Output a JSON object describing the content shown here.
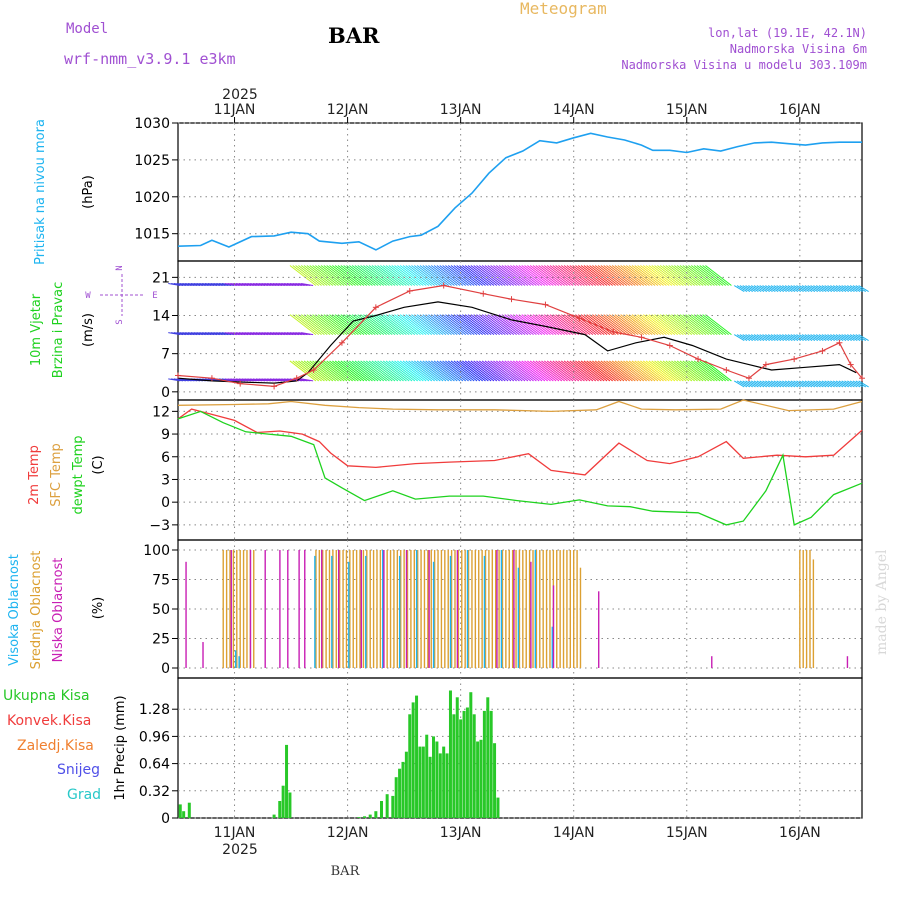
{
  "header": {
    "model_label": "Model",
    "model_name": "wrf-nmm_v3.9.1 e3km",
    "station": "BAR",
    "title": "Meteogram",
    "lonlat": "lon,lat (19.1E, 42.1N)",
    "elevation": "Nadmorska Visina 6m",
    "model_elevation": "Nadmorska Visina u modelu 303.109m",
    "footer_station": "BAR",
    "watermark": "made by Angel"
  },
  "colors": {
    "pressure": "#1ea0f0",
    "temp": "#f03c3c",
    "sfc": "#dca040",
    "dewpt": "#1ed21e",
    "high_cloud": "#1eb4f0",
    "mid_cloud": "#dca032",
    "low_cloud": "#c81eb4",
    "precip": "#28c828",
    "wind_obs": "#e04040",
    "label_purple": "#a050d2"
  },
  "time_axis": {
    "top_year": "2025",
    "bottom_year": "2025",
    "day_labels": [
      "11JAN",
      "12JAN",
      "13JAN",
      "14JAN",
      "15JAN",
      "16JAN"
    ],
    "day_positions": [
      0.5,
      1.5,
      2.5,
      3.5,
      4.5,
      5.5
    ],
    "range_days": [
      0.0,
      6.05
    ]
  },
  "panels": {
    "pressure": {
      "ylabel_name": "Pritisak na nivou mora",
      "unit": "(hPa)",
      "ticks": [
        "1015",
        "1020",
        "1025",
        "1030"
      ]
    },
    "wind": {
      "label_line1": "10m Vjetar",
      "label_line2": "Brzina i Pravac",
      "unit": "(m/s)",
      "ticks": [
        "0",
        "7",
        "14",
        "21"
      ],
      "compass": {
        "n": "N",
        "s": "S",
        "w": "W",
        "e": "E"
      }
    },
    "temperature": {
      "label_temp": "2m Temp",
      "label_sfc": "SFC Temp",
      "label_dewpt": "dewpt Temp",
      "unit": "(C)",
      "ticks": [
        "−3",
        "0",
        "3",
        "6",
        "9",
        "12"
      ]
    },
    "cloud": {
      "label_high": "Visoka Oblacnost",
      "label_mid": "Srednja Oblacnost",
      "label_low": "Niska Oblacnost",
      "unit": "(%)",
      "ticks": [
        "0",
        "25",
        "50",
        "75",
        "100"
      ]
    },
    "precip": {
      "legend_total": "Ukupna Kisa",
      "legend_conv": "Konvek.Kisa",
      "legend_frozen": "Zaledj.Kisa",
      "legend_snow": "Snijeg",
      "legend_hail": "Grad",
      "ylabel": "1hr Precip (mm)",
      "ticks": [
        "0",
        "0.32",
        "0.64",
        "0.96",
        "1.28"
      ]
    }
  },
  "chart_data": [
    {
      "type": "line",
      "title": "Pritisak na nivou mora",
      "ylabel": "(hPa)",
      "ylim": [
        1011.3,
        1030
      ],
      "x_days": [
        0.0,
        0.2,
        0.3,
        0.45,
        0.65,
        0.85,
        1.0,
        1.15,
        1.25,
        1.45,
        1.6,
        1.75,
        1.9,
        2.05,
        2.15,
        2.3,
        2.45,
        2.6,
        2.75,
        2.9,
        3.05,
        3.2,
        3.35,
        3.5,
        3.65,
        3.8,
        3.95,
        4.1,
        4.2,
        4.35,
        4.5,
        4.65,
        4.8,
        4.95,
        5.1,
        5.25,
        5.4,
        5.55,
        5.7,
        5.85,
        6.0,
        6.05
      ],
      "values": [
        1013.3,
        1013.4,
        1014.1,
        1013.2,
        1014.6,
        1014.7,
        1015.2,
        1015.0,
        1014.0,
        1013.7,
        1013.9,
        1012.8,
        1014.0,
        1014.6,
        1014.8,
        1016.0,
        1018.5,
        1020.5,
        1023.2,
        1025.3,
        1026.2,
        1027.6,
        1027.3,
        1028.0,
        1028.6,
        1028.1,
        1027.7,
        1027.0,
        1026.3,
        1026.3,
        1026.0,
        1026.5,
        1026.2,
        1026.8,
        1027.3,
        1027.4,
        1027.2,
        1027.0,
        1027.3,
        1027.4,
        1027.4,
        1027.4
      ]
    },
    {
      "type": "line",
      "title": "10m Vjetar Brzina i Pravac",
      "ylabel": "(m/s)",
      "ylim": [
        -1.5,
        24
      ],
      "series": [
        {
          "name": "10m wind speed",
          "x_days": [
            0.0,
            0.3,
            0.55,
            0.85,
            1.05,
            1.15,
            1.35,
            1.55,
            1.75,
            2.0,
            2.3,
            2.6,
            2.95,
            3.25,
            3.6,
            3.8,
            4.05,
            4.3,
            4.55,
            4.85,
            5.05,
            5.25,
            5.55,
            5.85,
            6.0
          ],
          "values": [
            2.5,
            2.0,
            1.8,
            1.6,
            2.0,
            3.5,
            8.5,
            13.0,
            14.0,
            15.5,
            16.5,
            15.5,
            13.2,
            12.0,
            10.5,
            7.5,
            9.0,
            10.0,
            8.5,
            6.0,
            5.0,
            4.0,
            4.5,
            5.0,
            3.5
          ]
        },
        {
          "name": "wind gust",
          "x_days": [
            0.0,
            0.3,
            0.55,
            0.85,
            1.05,
            1.2,
            1.45,
            1.75,
            2.05,
            2.35,
            2.7,
            2.95,
            3.25,
            3.55,
            3.85,
            4.1,
            4.35,
            4.6,
            4.85,
            5.05,
            5.2,
            5.45,
            5.7,
            5.85,
            5.95,
            6.05
          ],
          "values": [
            3.0,
            2.5,
            1.5,
            1.0,
            2.5,
            4.0,
            9.0,
            15.5,
            18.5,
            19.5,
            18.0,
            17.0,
            16.0,
            13.5,
            11.0,
            10.0,
            8.5,
            6.0,
            4.0,
            2.5,
            5.0,
            6.0,
            7.5,
            9.0,
            5.0,
            2.5
          ]
        }
      ]
    },
    {
      "type": "line",
      "title": "2m Temp / SFC Temp / dewpt Temp",
      "ylabel": "(C)",
      "ylim": [
        -5,
        13.5
      ],
      "series": [
        {
          "name": "2m Temp",
          "x_days": [
            0.0,
            0.12,
            0.3,
            0.5,
            0.7,
            0.9,
            1.1,
            1.25,
            1.35,
            1.5,
            1.75,
            2.1,
            2.4,
            2.8,
            3.1,
            3.3,
            3.6,
            3.9,
            4.15,
            4.35,
            4.6,
            4.85,
            5.0,
            5.3,
            5.55,
            5.8,
            6.05
          ],
          "values": [
            11.0,
            12.3,
            11.6,
            10.8,
            9.2,
            9.4,
            9.0,
            8.0,
            6.5,
            4.8,
            4.6,
            5.1,
            5.3,
            5.5,
            6.4,
            4.2,
            3.6,
            7.8,
            5.5,
            5.1,
            6.0,
            8.0,
            5.8,
            6.2,
            6.0,
            6.2,
            9.5
          ]
        },
        {
          "name": "SFC Temp",
          "x_days": [
            0.0,
            0.5,
            0.8,
            1.0,
            1.3,
            1.6,
            1.9,
            2.3,
            2.8,
            3.3,
            3.7,
            3.9,
            4.1,
            4.4,
            4.8,
            5.0,
            5.4,
            5.8,
            6.05
          ],
          "values": [
            12.8,
            12.9,
            13.0,
            13.3,
            12.8,
            12.5,
            12.3,
            12.2,
            12.2,
            12.0,
            12.2,
            13.3,
            12.3,
            12.2,
            12.3,
            13.5,
            12.1,
            12.3,
            13.3
          ]
        },
        {
          "name": "dewpt Temp",
          "x_days": [
            0.0,
            0.2,
            0.4,
            0.6,
            0.8,
            1.0,
            1.2,
            1.3,
            1.45,
            1.65,
            1.9,
            2.1,
            2.4,
            2.7,
            3.0,
            3.3,
            3.55,
            3.8,
            4.0,
            4.2,
            4.6,
            4.85,
            5.0,
            5.2,
            5.35,
            5.45,
            5.6,
            5.8,
            6.05
          ],
          "values": [
            11.0,
            12.0,
            10.5,
            9.3,
            9.0,
            8.7,
            7.6,
            3.2,
            1.9,
            0.2,
            1.5,
            0.4,
            0.8,
            0.8,
            0.2,
            -0.3,
            0.3,
            -0.5,
            -0.6,
            -1.2,
            -1.4,
            -3.0,
            -2.5,
            1.5,
            6.2,
            -3.0,
            -2.0,
            1.0,
            2.5
          ]
        }
      ]
    },
    {
      "type": "bar",
      "title": "Visoka / Srednja / Niska Oblacnost",
      "ylabel": "(%)",
      "ylim": [
        0,
        100
      ],
      "series": [
        {
          "name": "Srednja Oblacnost",
          "x_days": [
            0.4,
            0.43,
            0.46,
            0.49,
            0.52,
            0.55,
            0.58,
            0.61,
            0.64,
            0.67,
            1.22,
            1.25,
            1.28,
            1.31,
            1.34,
            1.37,
            1.4,
            1.43,
            1.46,
            1.49,
            1.52,
            1.55,
            1.58,
            1.61,
            1.64,
            1.67,
            1.7,
            1.73,
            1.76,
            1.79,
            1.82,
            1.85,
            1.88,
            1.91,
            1.94,
            1.97,
            2.0,
            2.03,
            2.06,
            2.09,
            2.12,
            2.15,
            2.18,
            2.21,
            2.24,
            2.27,
            2.3,
            2.33,
            2.36,
            2.39,
            2.42,
            2.45,
            2.48,
            2.51,
            2.54,
            2.57,
            2.6,
            2.63,
            2.66,
            2.69,
            2.72,
            2.75,
            2.78,
            2.81,
            2.84,
            2.87,
            2.9,
            2.93,
            2.96,
            2.99,
            3.02,
            3.05,
            3.08,
            3.11,
            3.14,
            3.17,
            3.2,
            3.23,
            3.26,
            3.29,
            3.32,
            3.35,
            3.38,
            3.41,
            3.44,
            3.47,
            3.5,
            3.53,
            3.56,
            5.5,
            5.53,
            5.56,
            5.59,
            5.62
          ],
          "values": [
            100,
            100,
            100,
            100,
            100,
            100,
            100,
            100,
            100,
            100,
            100,
            100,
            100,
            100,
            100,
            100,
            100,
            100,
            100,
            100,
            100,
            100,
            100,
            100,
            100,
            100,
            100,
            100,
            100,
            100,
            100,
            100,
            100,
            100,
            100,
            100,
            100,
            100,
            100,
            100,
            100,
            100,
            100,
            100,
            100,
            100,
            100,
            100,
            100,
            100,
            100,
            100,
            100,
            100,
            100,
            100,
            100,
            100,
            100,
            100,
            100,
            100,
            100,
            100,
            100,
            100,
            100,
            100,
            100,
            100,
            100,
            100,
            100,
            100,
            100,
            100,
            100,
            100,
            100,
            100,
            100,
            100,
            100,
            100,
            100,
            100,
            100,
            100,
            85,
            100,
            100,
            100,
            100,
            92
          ]
        },
        {
          "name": "Visoka Oblacnost",
          "x_days": [
            0.5,
            0.53,
            1.2,
            1.35,
            1.5,
            1.65,
            1.8,
            1.95,
            2.1,
            2.25,
            2.4,
            2.55,
            2.7,
            2.85,
            3.0,
            3.15,
            3.3
          ],
          "values": [
            15,
            10,
            95,
            95,
            90,
            95,
            100,
            95,
            100,
            90,
            95,
            100,
            95,
            100,
            85,
            100,
            35
          ]
        },
        {
          "name": "Niska Oblacnost",
          "x_days": [
            0.05,
            0.2,
            0.45,
            0.62,
            0.75,
            0.88,
            0.95,
            1.05,
            1.1,
            1.25,
            1.4,
            1.6,
            1.8,
            2.0,
            2.2,
            2.45,
            2.8,
            2.95,
            3.1,
            3.3,
            3.7,
            4.7,
            5.9
          ],
          "values": [
            90,
            22,
            100,
            100,
            100,
            100,
            100,
            100,
            100,
            100,
            100,
            100,
            100,
            100,
            100,
            100,
            100,
            100,
            90,
            70,
            65,
            10,
            10
          ]
        }
      ]
    },
    {
      "type": "bar",
      "title": "1hr Precip",
      "ylabel": "1hr Precip (mm)",
      "ylim": [
        0,
        1.6
      ],
      "series": [
        {
          "name": "Ukupna Kisa",
          "x_days": [
            0.02,
            0.05,
            0.1,
            0.12,
            0.15,
            0.2,
            0.3,
            0.35,
            0.4,
            0.45,
            0.5,
            0.6,
            0.75,
            0.85,
            0.9,
            0.93,
            0.96,
            0.99,
            1.02,
            1.05,
            1.5,
            1.55,
            1.6,
            1.65,
            1.7,
            1.75,
            1.8,
            1.85,
            1.9,
            1.93,
            1.96,
            1.99,
            2.02,
            2.05,
            2.08,
            2.11,
            2.14,
            2.17,
            2.2,
            2.23,
            2.26,
            2.29,
            2.32,
            2.35,
            2.38,
            2.41,
            2.44,
            2.47,
            2.5,
            2.53,
            2.56,
            2.59,
            2.62,
            2.65,
            2.68,
            2.71,
            2.74,
            2.77,
            2.8,
            2.83
          ],
          "values": [
            0.16,
            0.08,
            0.18,
            0,
            0,
            0,
            0,
            0,
            0,
            0,
            0,
            0,
            0,
            0.04,
            0.2,
            0.38,
            0.86,
            0.3,
            0,
            0,
            0,
            0,
            0.01,
            0.02,
            0.04,
            0.08,
            0.2,
            0.28,
            0.26,
            0.48,
            0.58,
            0.66,
            0.78,
            1.22,
            1.36,
            1.44,
            0.84,
            0.84,
            0.98,
            0.72,
            0.96,
            0.9,
            0.76,
            0.84,
            0.76,
            1.5,
            1.22,
            1.42,
            1.16,
            1.26,
            1.3,
            1.48,
            1.22,
            0.9,
            0.92,
            1.26,
            1.42,
            1.26,
            0.88,
            0.24
          ]
        }
      ]
    }
  ]
}
